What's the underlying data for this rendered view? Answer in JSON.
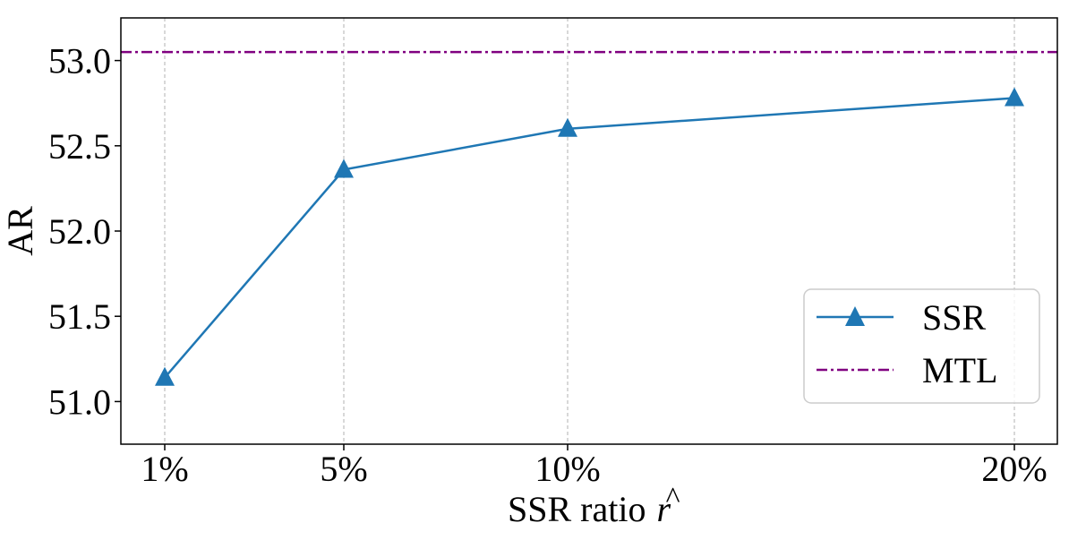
{
  "chart_data": {
    "type": "line",
    "categories": [
      "1%",
      "5%",
      "10%",
      "20%"
    ],
    "x": [
      1,
      5,
      10,
      20
    ],
    "series": [
      {
        "name": "SSR",
        "values": [
          51.14,
          52.36,
          52.6,
          52.78
        ],
        "color": "#1f77b4",
        "marker": "triangle"
      }
    ],
    "reference_lines": [
      {
        "name": "MTL",
        "value": 53.05,
        "color": "#800080",
        "style": "dash-dot"
      }
    ],
    "xlabel": "SSR ratio",
    "xlabel_symbol": "r",
    "xlabel_accent": "^",
    "ylabel": "AR",
    "ylim": [
      50.75,
      53.25
    ],
    "yticks": [
      "51.0",
      "51.5",
      "52.0",
      "52.5",
      "53.0"
    ],
    "ytick_values": [
      51.0,
      51.5,
      52.0,
      52.5,
      53.0
    ],
    "x_grid": true,
    "y_grid": false,
    "legend_position": "lower-right"
  }
}
